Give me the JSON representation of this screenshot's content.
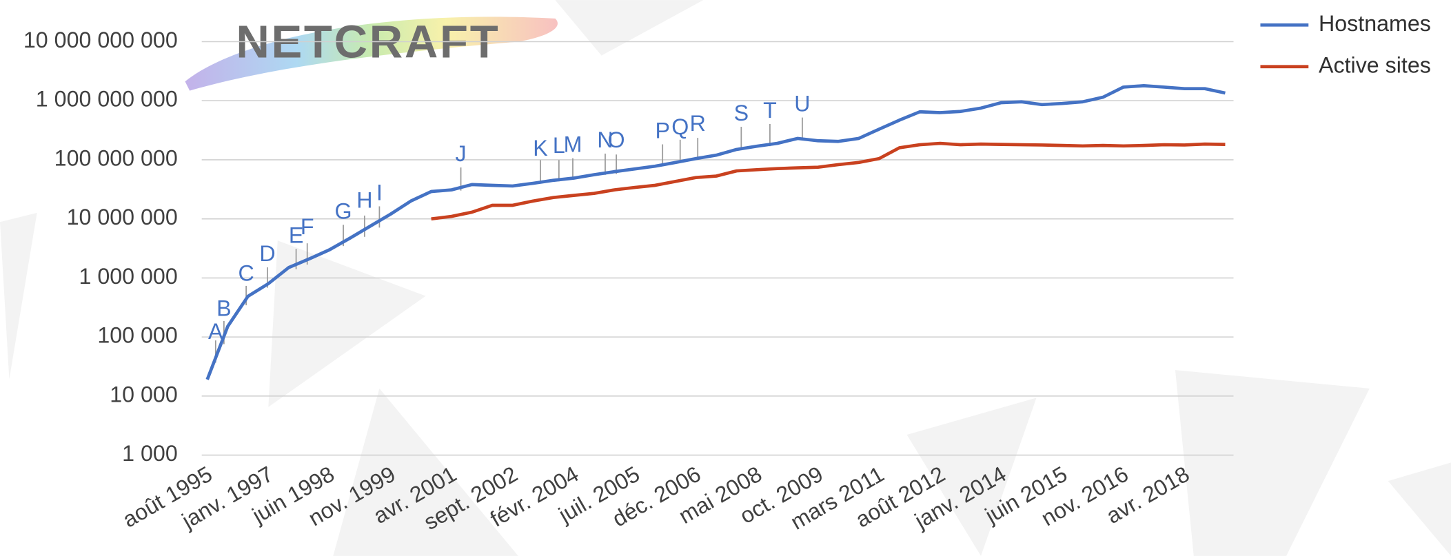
{
  "logo": "NETCRAFT",
  "chart_data": {
    "type": "line",
    "log_scale": true,
    "grid": true,
    "legend": "top-right",
    "categories": [
      "août 1995",
      null,
      null,
      "janv. 1997",
      null,
      null,
      "juin 1998",
      null,
      null,
      "nov. 1999",
      null,
      null,
      "avr. 2001",
      null,
      null,
      "sept. 2002",
      null,
      null,
      "févr. 2004",
      null,
      null,
      "juil. 2005",
      null,
      null,
      "déc. 2006",
      null,
      null,
      "mai 2008",
      null,
      null,
      "oct. 2009",
      null,
      null,
      "mars 2011",
      null,
      null,
      "août 2012",
      null,
      null,
      "janv. 2014",
      null,
      null,
      "juin 2015",
      null,
      null,
      "nov. 2016",
      null,
      null,
      "avr. 2018",
      null,
      null
    ],
    "ylim": [
      1000,
      10000000000
    ],
    "yticks": [
      {
        "value": 1000,
        "label": "1 000"
      },
      {
        "value": 10000,
        "label": "10 000"
      },
      {
        "value": 100000,
        "label": "100 000"
      },
      {
        "value": 1000000,
        "label": "1 000 000"
      },
      {
        "value": 10000000,
        "label": "10 000 000"
      },
      {
        "value": 100000000,
        "label": "100 000 000"
      },
      {
        "value": 1000000000,
        "label": "1 000 000 000"
      },
      {
        "value": 10000000000,
        "label": "10 000 000 000"
      }
    ],
    "series": [
      {
        "name": "Hostnames",
        "color": "#4472c4",
        "values": [
          19000,
          150000,
          490000,
          800000,
          1500000,
          2100000,
          3000000,
          4700000,
          7500000,
          12000000,
          20000000,
          29000000,
          31000000,
          38000000,
          37000000,
          36000000,
          40000000,
          45000000,
          49000000,
          56000000,
          63000000,
          70000000,
          78000000,
          90000000,
          105000000,
          120000000,
          150000000,
          170000000,
          190000000,
          230000000,
          210000000,
          205000000,
          230000000,
          330000000,
          470000000,
          650000000,
          630000000,
          660000000,
          750000000,
          930000000,
          960000000,
          860000000,
          900000000,
          960000000,
          1150000000,
          1700000000,
          1800000000,
          1700000000,
          1600000000,
          1600000000,
          1350000000
        ]
      },
      {
        "name": "Active sites",
        "color": "#c9411f",
        "values": [
          null,
          null,
          null,
          null,
          null,
          null,
          null,
          null,
          null,
          null,
          null,
          10000000,
          11000000,
          13000000,
          17000000,
          17000000,
          20000000,
          23000000,
          25000000,
          27000000,
          31000000,
          34000000,
          37000000,
          43000000,
          50000000,
          53000000,
          65000000,
          68000000,
          71000000,
          73000000,
          75000000,
          83000000,
          90000000,
          105000000,
          160000000,
          180000000,
          190000000,
          180000000,
          185000000,
          182000000,
          180000000,
          178000000,
          175000000,
          172000000,
          175000000,
          172000000,
          175000000,
          180000000,
          178000000,
          185000000,
          182000000
        ]
      }
    ],
    "annotations": [
      "A",
      "B",
      "C",
      "D",
      "E",
      "F",
      "G",
      "H",
      "I",
      "J",
      "K",
      "L",
      "M",
      "N",
      "O",
      "P",
      "Q",
      "R",
      "S",
      "T",
      "U"
    ]
  }
}
